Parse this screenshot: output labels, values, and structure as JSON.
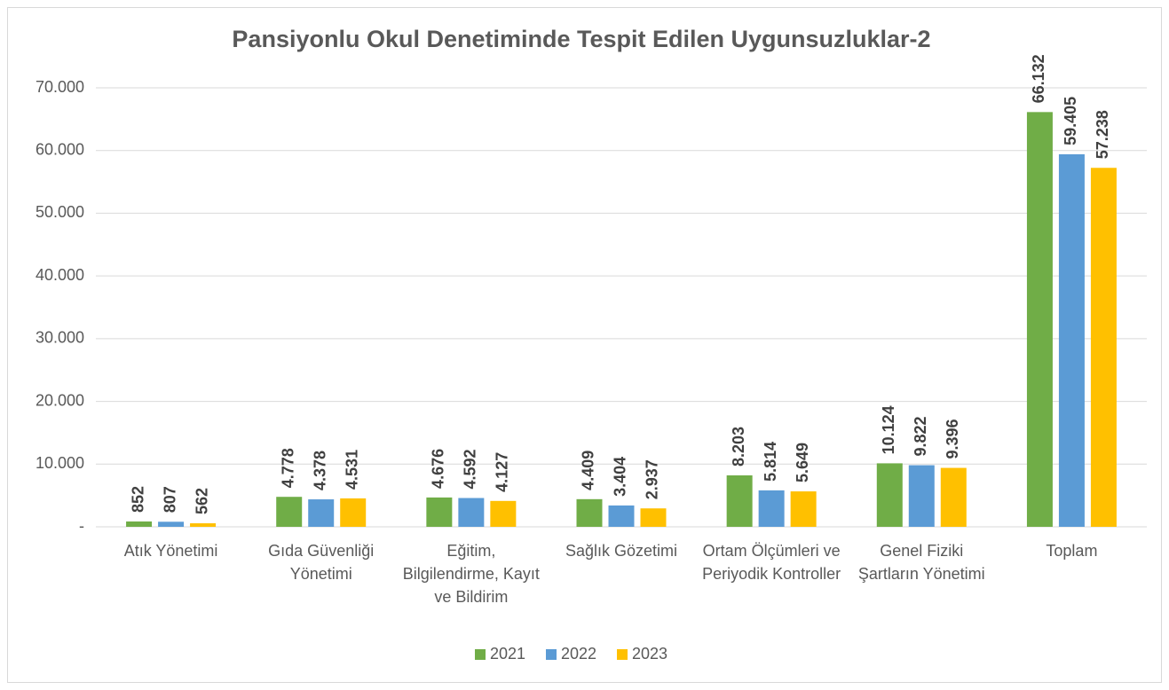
{
  "chart_data": {
    "type": "bar",
    "title": "Pansiyonlu Okul Denetiminde Tespit Edilen Uygunsuzluklar-2",
    "categories": [
      "Atık Yönetimi",
      "Gıda Güvenliği Yönetimi",
      "Eğitim, Bilgilendirme, Kayıt ve Bildirim",
      "Sağlık Gözetimi",
      "Ortam Ölçümleri ve Periyodik Kontroller",
      "Genel Fiziki Şartların Yönetimi",
      "Toplam"
    ],
    "series": [
      {
        "name": "2021",
        "color": "#70ad47",
        "values": [
          852,
          4778,
          4676,
          4409,
          8203,
          10124,
          66132
        ],
        "value_labels": [
          "852",
          "4.778",
          "4.676",
          "4.409",
          "8.203",
          "10.124",
          "66.132"
        ]
      },
      {
        "name": "2022",
        "color": "#5b9bd5",
        "values": [
          807,
          4378,
          4592,
          3404,
          5814,
          9822,
          59405
        ],
        "value_labels": [
          "807",
          "4.378",
          "4.592",
          "3.404",
          "5.814",
          "9.822",
          "59.405"
        ]
      },
      {
        "name": "2023",
        "color": "#ffc000",
        "values": [
          562,
          4531,
          4127,
          2937,
          5649,
          9396,
          57238
        ],
        "value_labels": [
          "562",
          "4.531",
          "4.127",
          "2.937",
          "5.649",
          "9.396",
          "57.238"
        ]
      }
    ],
    "ylim": [
      0,
      70000
    ],
    "yticks": [
      {
        "value": 0,
        "label": "-"
      },
      {
        "value": 10000,
        "label": "10.000"
      },
      {
        "value": 20000,
        "label": "20.000"
      },
      {
        "value": 30000,
        "label": "30.000"
      },
      {
        "value": 40000,
        "label": "40.000"
      },
      {
        "value": 50000,
        "label": "50.000"
      },
      {
        "value": 60000,
        "label": "60.000"
      },
      {
        "value": 70000,
        "label": "70.000"
      }
    ],
    "grid": true,
    "legend": "bottom"
  }
}
